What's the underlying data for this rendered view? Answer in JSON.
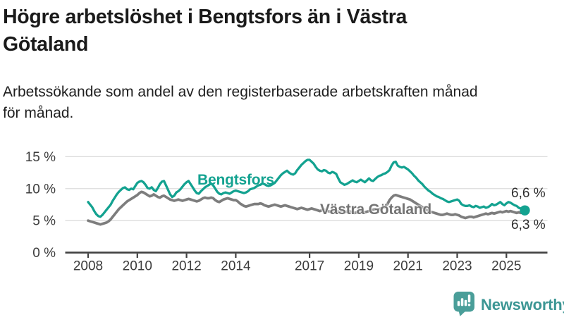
{
  "page": {
    "title": "Högre arbetslöshet i Bengtsfors än i Västra\nGötaland",
    "subtitle": "Arbetssökande som andel av den registerbaserade arbetskraften månad\nför månad."
  },
  "colors": {
    "bengtsfors_line": "#13a290",
    "vastra_gotaland_line": "#7d7d7d",
    "grid": "#dcdcdc",
    "axis": "#414141",
    "tick_text": "#3c3c3c",
    "brand_teal": "#4a9e99"
  },
  "chart_data": {
    "type": "line",
    "unit": "%",
    "grid": true,
    "x_axis": {
      "ticks": [
        {
          "v": 2008,
          "label": "2008"
        },
        {
          "v": 2010,
          "label": "2010"
        },
        {
          "v": 2012,
          "label": "2012"
        },
        {
          "v": 2014,
          "label": "2014"
        },
        {
          "v": 2017,
          "label": "2017"
        },
        {
          "v": 2019,
          "label": "2019"
        },
        {
          "v": 2021,
          "label": "2021"
        },
        {
          "v": 2023,
          "label": "2023"
        },
        {
          "v": 2025,
          "label": "2025"
        }
      ]
    },
    "y_axis": {
      "ticks": [
        {
          "v": 0,
          "label": "0 %"
        },
        {
          "v": 5,
          "label": "5 %"
        },
        {
          "v": 10,
          "label": "10 %"
        },
        {
          "v": 15,
          "label": "15 %"
        }
      ],
      "range": [
        0,
        16.5
      ]
    },
    "series": [
      {
        "name": "Bengtsfors",
        "color": "#13a290",
        "line_width": 3.3,
        "start_year": 2008,
        "points_per_year": 12,
        "end_dot": true,
        "end_label": "6,6 %",
        "values": [
          7.9,
          7.5,
          7.1,
          6.5,
          6.0,
          5.7,
          5.6,
          5.9,
          6.3,
          6.7,
          7.1,
          7.5,
          8.1,
          8.6,
          9.1,
          9.5,
          9.8,
          10.1,
          10.2,
          9.9,
          9.8,
          10.0,
          9.9,
          10.4,
          10.9,
          11.1,
          11.2,
          11.0,
          10.6,
          10.1,
          10.0,
          10.2,
          9.8,
          9.6,
          10.1,
          10.7,
          11.1,
          11.2,
          10.5,
          9.8,
          9.1,
          8.7,
          8.9,
          9.4,
          9.6,
          9.9,
          10.3,
          10.7,
          11.0,
          11.2,
          10.7,
          10.2,
          9.7,
          9.3,
          9.2,
          9.6,
          9.9,
          10.2,
          10.4,
          10.6,
          10.8,
          10.5,
          10.0,
          9.5,
          9.2,
          9.1,
          9.3,
          9.4,
          9.3,
          9.2,
          9.4,
          9.6,
          9.7,
          9.6,
          9.5,
          9.4,
          9.3,
          9.4,
          9.6,
          9.9,
          10.0,
          10.1,
          10.3,
          10.5,
          10.6,
          10.8,
          10.7,
          10.5,
          10.4,
          10.5,
          10.7,
          10.9,
          11.3,
          11.7,
          12.1,
          12.4,
          12.6,
          12.8,
          12.5,
          12.3,
          12.2,
          12.4,
          12.9,
          13.3,
          13.7,
          14.0,
          14.3,
          14.5,
          14.5,
          14.2,
          13.9,
          13.4,
          13.0,
          12.8,
          12.7,
          12.9,
          12.8,
          12.5,
          12.4,
          12.6,
          12.5,
          12.3,
          11.6,
          11.0,
          10.8,
          10.6,
          10.7,
          10.9,
          11.1,
          11.3,
          11.1,
          11.0,
          11.2,
          11.4,
          11.2,
          11.0,
          11.3,
          11.6,
          11.3,
          11.2,
          11.5,
          11.8,
          12.0,
          12.1,
          12.3,
          12.4,
          12.6,
          12.9,
          13.6,
          14.1,
          14.2,
          13.6,
          13.4,
          13.3,
          13.4,
          13.2,
          13.0,
          12.7,
          12.4,
          12.0,
          11.7,
          11.3,
          11.0,
          10.7,
          10.3,
          10.0,
          9.7,
          9.5,
          9.2,
          9.0,
          8.8,
          8.7,
          8.5,
          8.4,
          8.2,
          8.0,
          7.9,
          8.0,
          8.1,
          8.2,
          8.3,
          8.1,
          7.6,
          7.4,
          7.3,
          7.3,
          7.4,
          7.2,
          7.1,
          7.3,
          7.2,
          7.0,
          7.1,
          7.2,
          7.0,
          7.1,
          7.3,
          7.6,
          7.4,
          7.5,
          7.7,
          7.9,
          7.6,
          7.4,
          7.7,
          7.9,
          7.8,
          7.6,
          7.4,
          7.3,
          7.0,
          6.9,
          6.8,
          6.6
        ]
      },
      {
        "name": "Västra Götaland",
        "color": "#7d7d7d",
        "line_width": 3.7,
        "start_year": 2008,
        "points_per_year": 12,
        "end_dot": false,
        "end_label": "6,3 %",
        "values": [
          5.0,
          4.9,
          4.8,
          4.7,
          4.6,
          4.5,
          4.4,
          4.5,
          4.6,
          4.7,
          4.9,
          5.2,
          5.6,
          6.0,
          6.4,
          6.8,
          7.1,
          7.4,
          7.7,
          8.0,
          8.2,
          8.4,
          8.6,
          8.8,
          9.0,
          9.3,
          9.5,
          9.4,
          9.2,
          9.0,
          8.8,
          8.9,
          9.1,
          8.9,
          8.7,
          8.6,
          8.8,
          8.9,
          8.7,
          8.5,
          8.3,
          8.2,
          8.1,
          8.2,
          8.3,
          8.2,
          8.1,
          8.2,
          8.3,
          8.4,
          8.3,
          8.2,
          8.1,
          8.0,
          8.1,
          8.3,
          8.5,
          8.6,
          8.5,
          8.5,
          8.6,
          8.5,
          8.2,
          8.0,
          7.9,
          8.1,
          8.3,
          8.4,
          8.5,
          8.4,
          8.3,
          8.2,
          8.2,
          8.0,
          7.7,
          7.5,
          7.3,
          7.2,
          7.3,
          7.4,
          7.5,
          7.6,
          7.6,
          7.6,
          7.7,
          7.6,
          7.4,
          7.3,
          7.2,
          7.3,
          7.4,
          7.5,
          7.4,
          7.3,
          7.2,
          7.3,
          7.4,
          7.3,
          7.2,
          7.1,
          7.0,
          6.9,
          6.8,
          6.9,
          7.0,
          6.9,
          6.8,
          6.7,
          6.8,
          6.9,
          6.8,
          6.7,
          6.6,
          6.5,
          6.6,
          6.7,
          6.6,
          6.5,
          6.4,
          6.5,
          6.6,
          6.5,
          6.4,
          6.3,
          6.2,
          6.3,
          6.4,
          6.5,
          6.4,
          6.3,
          6.2,
          6.3,
          6.4,
          6.5,
          6.4,
          6.3,
          6.4,
          6.5,
          6.6,
          6.7,
          6.8,
          6.7,
          6.8,
          6.9,
          7.0,
          7.2,
          7.6,
          8.2,
          8.6,
          8.9,
          9.0,
          8.9,
          8.8,
          8.7,
          8.6,
          8.5,
          8.4,
          8.3,
          8.1,
          7.9,
          7.7,
          7.5,
          7.3,
          7.1,
          6.9,
          6.7,
          6.5,
          6.4,
          6.3,
          6.2,
          6.1,
          6.0,
          5.9,
          5.9,
          6.0,
          6.1,
          6.0,
          5.9,
          5.9,
          6.0,
          5.9,
          5.8,
          5.6,
          5.5,
          5.4,
          5.5,
          5.6,
          5.6,
          5.5,
          5.6,
          5.7,
          5.8,
          5.9,
          6.0,
          6.1,
          6.0,
          6.1,
          6.2,
          6.1,
          6.2,
          6.3,
          6.4,
          6.3,
          6.4,
          6.5,
          6.4,
          6.5,
          6.4,
          6.3,
          6.2,
          6.3,
          6.2,
          6.3,
          6.3
        ]
      }
    ]
  },
  "footer": {
    "brand": "Newsworthy",
    "logo_icon": "bar-chart-speech-bubble-icon"
  }
}
